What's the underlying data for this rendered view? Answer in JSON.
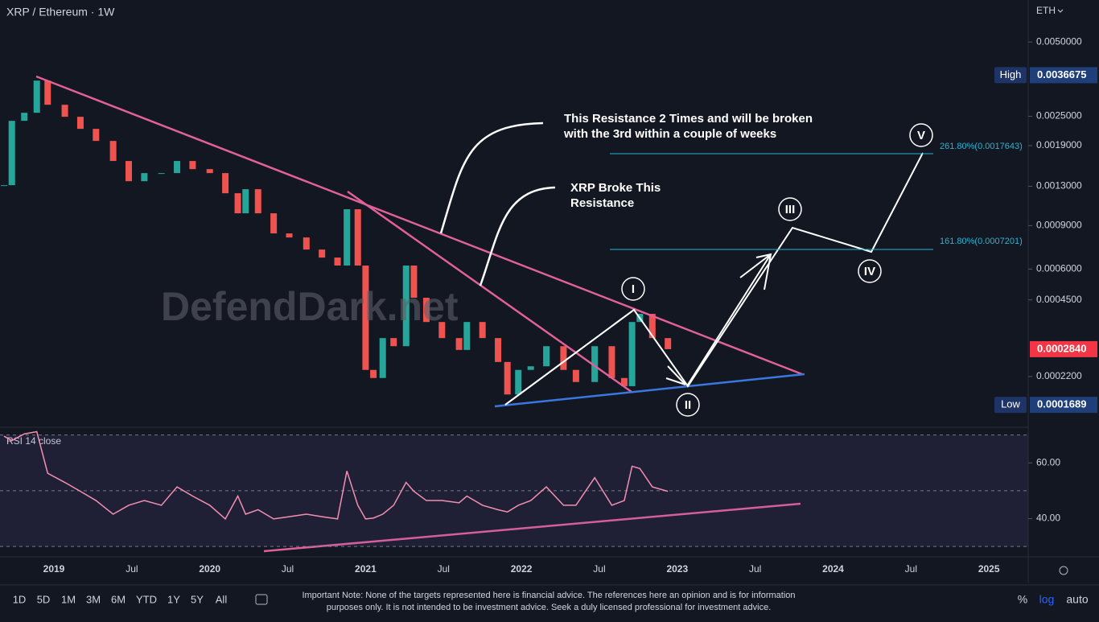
{
  "chart_data": [
    {
      "type": "candlestick",
      "title": "XRP / Ethereum · 1W",
      "currency": "ETH",
      "log_scale": true,
      "up_color": "#26a69a",
      "down_color": "#ef5350",
      "x": [
        2018.68,
        2018.73,
        2018.81,
        2018.89,
        2018.96,
        2019.07,
        2019.17,
        2019.27,
        2019.38,
        2019.48,
        2019.58,
        2019.69,
        2019.79,
        2019.89,
        2020.0,
        2020.1,
        2020.18,
        2020.23,
        2020.31,
        2020.41,
        2020.51,
        2020.62,
        2020.72,
        2020.82,
        2020.88,
        2020.95,
        2021.0,
        2021.05,
        2021.11,
        2021.18,
        2021.26,
        2021.31,
        2021.39,
        2021.49,
        2021.6,
        2021.65,
        2021.75,
        2021.85,
        2021.91,
        2021.98,
        2022.06,
        2022.16,
        2022.27,
        2022.35,
        2022.47,
        2022.58,
        2022.66,
        2022.71,
        2022.76,
        2022.84,
        2022.94
      ],
      "values": [
        0.001313,
        0.002395,
        0.002582,
        0.003486,
        0.002783,
        0.002487,
        0.002222,
        0.001985,
        0.001646,
        0.001363,
        0.00147,
        0.00147,
        0.001646,
        0.001526,
        0.00147,
        0.001218,
        0.00101,
        0.001265,
        0.00101,
        0.000837,
        0.000806,
        0.00072,
        0.000668,
        0.00062,
        0.001049,
        0.00062,
        0.000234,
        0.000217,
        0.000315,
        0.000292,
        0.00062,
        0.000459,
        0.000366,
        0.000315,
        0.000282,
        0.000366,
        0.000315,
        0.000252,
        0.000186,
        0.000234,
        0.000242,
        0.000292,
        0.000234,
        0.000209,
        0.000292,
        0.000217,
        0.000201,
        0.000366,
        0.000395,
        0.000315,
        0.000284
      ],
      "xlim": [
        2018.654,
        2025.252
      ],
      "xticks": [
        2019,
        {
          "value": 2019.5,
          "label": "Jul"
        },
        2020,
        {
          "value": 2020.5,
          "label": "Jul"
        },
        2021,
        {
          "value": 2021.5,
          "label": "Jul"
        },
        2022,
        {
          "value": 2022.5,
          "label": "Jul"
        },
        2023,
        {
          "value": 2023.5,
          "label": "Jul"
        },
        2024,
        {
          "value": 2024.5,
          "label": "Jul"
        },
        2025
      ],
      "ylim": [
        0.000138,
        0.0074
      ],
      "yticks": [
        {
          "value": 0.005,
          "label": "0.0050000"
        },
        {
          "value": 0.0025,
          "label": "0.0025000"
        },
        {
          "value": 0.0019,
          "label": "0.0019000"
        },
        {
          "value": 0.0013,
          "label": "0.0013000"
        },
        {
          "value": 0.0009,
          "label": "0.0009000"
        },
        {
          "value": 0.0006,
          "label": "0.0006000"
        },
        {
          "value": 0.00045,
          "label": "0.0004500"
        },
        {
          "value": 0.00022,
          "label": "0.0002200"
        }
      ],
      "high": {
        "label": "High",
        "price": 0.0036675
      },
      "low": {
        "label": "Low",
        "price": 0.0001689
      },
      "last": {
        "value": 0.000284,
        "label": "0.0002840"
      },
      "annotations": {
        "resistance_note": [
          "This Resistance 2 Times and will be broken",
          "with the 3rd within a couple of weeks"
        ],
        "broke_note": [
          "XRP Broke This",
          "Resistance"
        ],
        "watermark": "DefendDark.net",
        "fib_261": "261.80%(0.0017643)",
        "fib_161": "161.80%(0.0007201)",
        "waves": [
          "I",
          "II",
          "III",
          "IV",
          "V"
        ]
      }
    },
    {
      "type": "line",
      "title": "RSI 14 close",
      "color": "#f48fb1",
      "x": [
        2018.68,
        2018.73,
        2018.81,
        2018.89,
        2018.96,
        2019.07,
        2019.17,
        2019.27,
        2019.38,
        2019.48,
        2019.58,
        2019.69,
        2019.79,
        2019.89,
        2020.0,
        2020.1,
        2020.18,
        2020.23,
        2020.31,
        2020.41,
        2020.51,
        2020.62,
        2020.72,
        2020.82,
        2020.88,
        2020.95,
        2021.0,
        2021.05,
        2021.11,
        2021.18,
        2021.26,
        2021.31,
        2021.39,
        2021.49,
        2021.6,
        2021.65,
        2021.75,
        2021.85,
        2021.91,
        2021.98,
        2022.06,
        2022.16,
        2022.27,
        2022.35,
        2022.47,
        2022.58,
        2022.66,
        2022.71,
        2022.76,
        2022.84,
        2022.94
      ],
      "values": [
        69.6,
        68.0,
        70.4,
        71.2,
        56.3,
        53.0,
        49.8,
        46.5,
        41.6,
        44.8,
        46.5,
        44.8,
        51.4,
        48.1,
        44.8,
        39.9,
        48.1,
        41.6,
        43.2,
        39.9,
        40.7,
        41.6,
        40.7,
        39.9,
        57.1,
        44.8,
        39.9,
        40.2,
        41.6,
        44.8,
        53.0,
        49.8,
        46.5,
        46.5,
        45.7,
        48.1,
        44.8,
        43.2,
        42.4,
        44.8,
        46.5,
        51.4,
        44.8,
        44.8,
        54.7,
        44.8,
        46.5,
        58.8,
        58.0,
        51.4,
        49.8
      ],
      "xlim": [
        2018.654,
        2025.252
      ],
      "ylim": [
        26.3,
        72.5
      ],
      "yticks": [
        {
          "value": 60,
          "label": "60.00"
        },
        {
          "value": 40,
          "label": "40.00"
        }
      ],
      "levels": [
        70,
        50,
        30
      ]
    }
  ],
  "toolbar": {
    "timeframes": [
      "1D",
      "5D",
      "1M",
      "3M",
      "6M",
      "YTD",
      "1Y",
      "5Y",
      "All"
    ],
    "note": [
      "Important Note: None of the targets represented here is financial advice. The references here an opinion and is for information",
      "purposes only. It is not intended to be investment advice. Seek a duly licensed professional for investment advice."
    ],
    "scale_options": [
      "%",
      "log",
      "auto"
    ]
  }
}
